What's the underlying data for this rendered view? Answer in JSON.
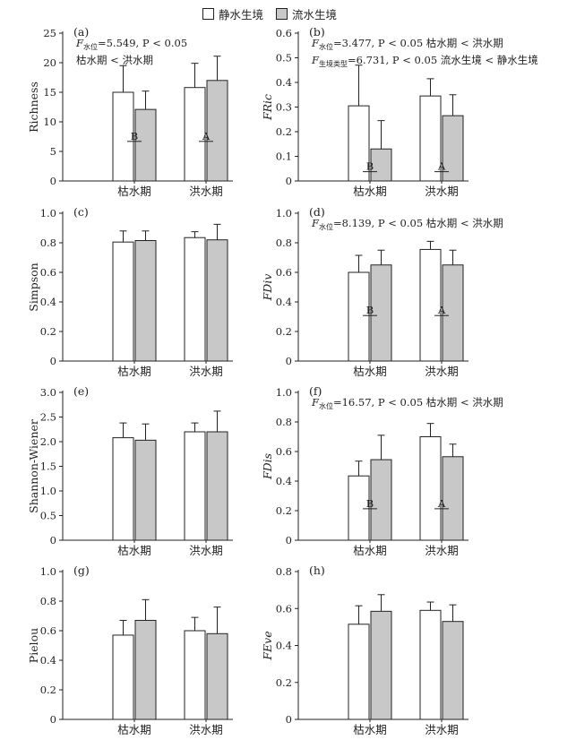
{
  "legend": [
    {
      "label": "静水生境",
      "color": "#ffffff"
    },
    {
      "label": "流水生境",
      "color": "#c8c8c8"
    }
  ],
  "colors": {
    "still": "#ffffff",
    "flowing": "#c8c8c8",
    "axis": "#222222"
  },
  "chart_data": [
    {
      "type": "bar",
      "panel": "(a)",
      "ylabel": "Richness",
      "categories": [
        "枯水期",
        "洪水期"
      ],
      "ylim": [
        0,
        25
      ],
      "yticks": [
        0,
        5,
        10,
        15,
        20,
        25
      ],
      "series": [
        {
          "name": "静水生境",
          "values": [
            15.0,
            15.8
          ],
          "errors": [
            4.5,
            4.1
          ]
        },
        {
          "name": "流水生境",
          "values": [
            12.1,
            17.0
          ],
          "errors": [
            3.1,
            4.1
          ]
        }
      ],
      "annotations": [
        {
          "prefix": "F",
          "sub": "水位",
          "suffix": "=5.549, P < 0.05"
        },
        {
          "prefix": "",
          "sub": "",
          "suffix": "枯水期 < 洪水期"
        }
      ],
      "letters": [
        {
          "cat": 0,
          "text": "B",
          "y": 7.0
        },
        {
          "cat": 1,
          "text": "A",
          "y": 7.0
        }
      ]
    },
    {
      "type": "bar",
      "panel": "(b)",
      "ylabel": "FRic",
      "categories": [
        "枯水期",
        "洪水期"
      ],
      "ylim": [
        0,
        0.6
      ],
      "yticks": [
        0,
        0.1,
        0.2,
        0.3,
        0.4,
        0.5,
        0.6
      ],
      "series": [
        {
          "name": "静水生境",
          "values": [
            0.305,
            0.345
          ],
          "errors": [
            0.165,
            0.07
          ]
        },
        {
          "name": "流水生境",
          "values": [
            0.13,
            0.265
          ],
          "errors": [
            0.115,
            0.085
          ]
        }
      ],
      "annotations": [
        {
          "prefix": "F",
          "sub": "水位",
          "suffix": "=3.477, P < 0.05  枯水期 < 洪水期"
        },
        {
          "prefix": "F",
          "sub": "生境类型",
          "suffix": "=6.731, P < 0.05  流水生境 < 静水生境"
        }
      ],
      "letters": [
        {
          "cat": 0,
          "text": "B",
          "y": 0.045
        },
        {
          "cat": 1,
          "text": "A",
          "y": 0.045
        }
      ]
    },
    {
      "type": "bar",
      "panel": "(c)",
      "ylabel": "Simpson",
      "categories": [
        "枯水期",
        "洪水期"
      ],
      "ylim": [
        0,
        1.0
      ],
      "yticks": [
        0,
        0.2,
        0.4,
        0.6,
        0.8,
        1.0
      ],
      "series": [
        {
          "name": "静水生境",
          "values": [
            0.805,
            0.835
          ],
          "errors": [
            0.075,
            0.04
          ]
        },
        {
          "name": "流水生境",
          "values": [
            0.815,
            0.82
          ],
          "errors": [
            0.065,
            0.105
          ]
        }
      ],
      "annotations": [],
      "letters": []
    },
    {
      "type": "bar",
      "panel": "(d)",
      "ylabel": "FDiv",
      "categories": [
        "枯水期",
        "洪水期"
      ],
      "ylim": [
        0,
        1.0
      ],
      "yticks": [
        0,
        0.2,
        0.4,
        0.6,
        0.8,
        1.0
      ],
      "series": [
        {
          "name": "静水生境",
          "values": [
            0.6,
            0.755
          ],
          "errors": [
            0.115,
            0.055
          ]
        },
        {
          "name": "流水生境",
          "values": [
            0.65,
            0.65
          ],
          "errors": [
            0.1,
            0.1
          ]
        }
      ],
      "annotations": [
        {
          "prefix": "F",
          "sub": "水位",
          "suffix": "=8.139, P < 0.05 枯水期 < 洪水期"
        }
      ],
      "letters": [
        {
          "cat": 0,
          "text": "B",
          "y": 0.32
        },
        {
          "cat": 1,
          "text": "A",
          "y": 0.32
        }
      ]
    },
    {
      "type": "bar",
      "panel": "(e)",
      "ylabel": "Shannon-Wiener",
      "categories": [
        "枯水期",
        "洪水期"
      ],
      "ylim": [
        0,
        3.0
      ],
      "yticks": [
        0,
        0.5,
        1.0,
        1.5,
        2.0,
        2.5,
        3.0
      ],
      "series": [
        {
          "name": "静水生境",
          "values": [
            2.08,
            2.2
          ],
          "errors": [
            0.3,
            0.18
          ]
        },
        {
          "name": "流水生境",
          "values": [
            2.03,
            2.2
          ],
          "errors": [
            0.33,
            0.42
          ]
        }
      ],
      "annotations": [],
      "letters": []
    },
    {
      "type": "bar",
      "panel": "(f)",
      "ylabel": "FDis",
      "categories": [
        "枯水期",
        "洪水期"
      ],
      "ylim": [
        0,
        1.0
      ],
      "yticks": [
        0,
        0.2,
        0.4,
        0.6,
        0.8,
        1.0
      ],
      "series": [
        {
          "name": "静水生境",
          "values": [
            0.435,
            0.7
          ],
          "errors": [
            0.1,
            0.09
          ]
        },
        {
          "name": "流水生境",
          "values": [
            0.545,
            0.565
          ],
          "errors": [
            0.165,
            0.085
          ]
        }
      ],
      "annotations": [
        {
          "prefix": "F",
          "sub": "水位",
          "suffix": "=16.57, P < 0.05  枯水期 < 洪水期"
        }
      ],
      "letters": [
        {
          "cat": 0,
          "text": "B",
          "y": 0.225
        },
        {
          "cat": 1,
          "text": "A",
          "y": 0.225
        }
      ]
    },
    {
      "type": "bar",
      "panel": "(g)",
      "ylabel": "Pielou",
      "categories": [
        "枯水期",
        "洪水期"
      ],
      "ylim": [
        0,
        1.0
      ],
      "yticks": [
        0,
        0.2,
        0.4,
        0.6,
        0.8,
        1.0
      ],
      "series": [
        {
          "name": "静水生境",
          "values": [
            0.57,
            0.6
          ],
          "errors": [
            0.1,
            0.09
          ]
        },
        {
          "name": "流水生境",
          "values": [
            0.67,
            0.58
          ],
          "errors": [
            0.14,
            0.18
          ]
        }
      ],
      "annotations": [],
      "letters": []
    },
    {
      "type": "bar",
      "panel": "(h)",
      "ylabel": "FEve",
      "categories": [
        "枯水期",
        "洪水期"
      ],
      "ylim": [
        0,
        0.8
      ],
      "yticks": [
        0,
        0.2,
        0.4,
        0.6,
        0.8
      ],
      "series": [
        {
          "name": "静水生境",
          "values": [
            0.515,
            0.59
          ],
          "errors": [
            0.1,
            0.045
          ]
        },
        {
          "name": "流水生境",
          "values": [
            0.585,
            0.53
          ],
          "errors": [
            0.09,
            0.09
          ]
        }
      ],
      "annotations": [],
      "letters": []
    }
  ]
}
